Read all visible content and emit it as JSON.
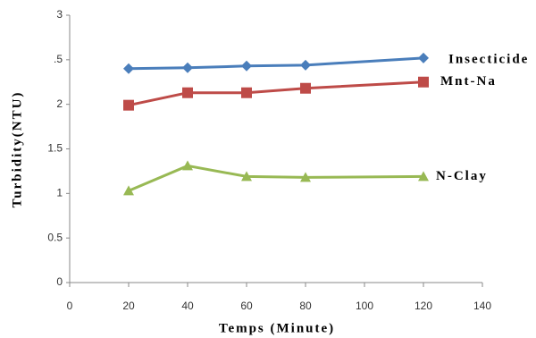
{
  "chart_data": {
    "type": "line",
    "x_label": "Temps (Minute)",
    "y_label": "Turbidity(NTU)",
    "x": [
      20,
      40,
      60,
      80,
      120
    ],
    "series": [
      {
        "name": "Insecticide",
        "color": "#4a7ebb",
        "marker": "diamond",
        "values": [
          2.4,
          2.41,
          2.43,
          2.44,
          2.52
        ]
      },
      {
        "name": "Mnt-Na",
        "color": "#be4b48",
        "marker": "square",
        "values": [
          1.99,
          2.13,
          2.13,
          2.18,
          2.25
        ]
      },
      {
        "name": "N-Clay",
        "color": "#98b954",
        "marker": "triangle",
        "values": [
          1.03,
          1.31,
          1.19,
          1.18,
          1.19
        ]
      }
    ],
    "xlim": [
      0,
      140
    ],
    "xticks": [
      0,
      20,
      40,
      60,
      80,
      100,
      120,
      140
    ],
    "ylim": [
      0,
      3
    ],
    "yticks": [
      0,
      0.5,
      1,
      1.5,
      2,
      {
        "value": 2.5,
        "label": ".5"
      },
      3
    ],
    "grid": false
  }
}
